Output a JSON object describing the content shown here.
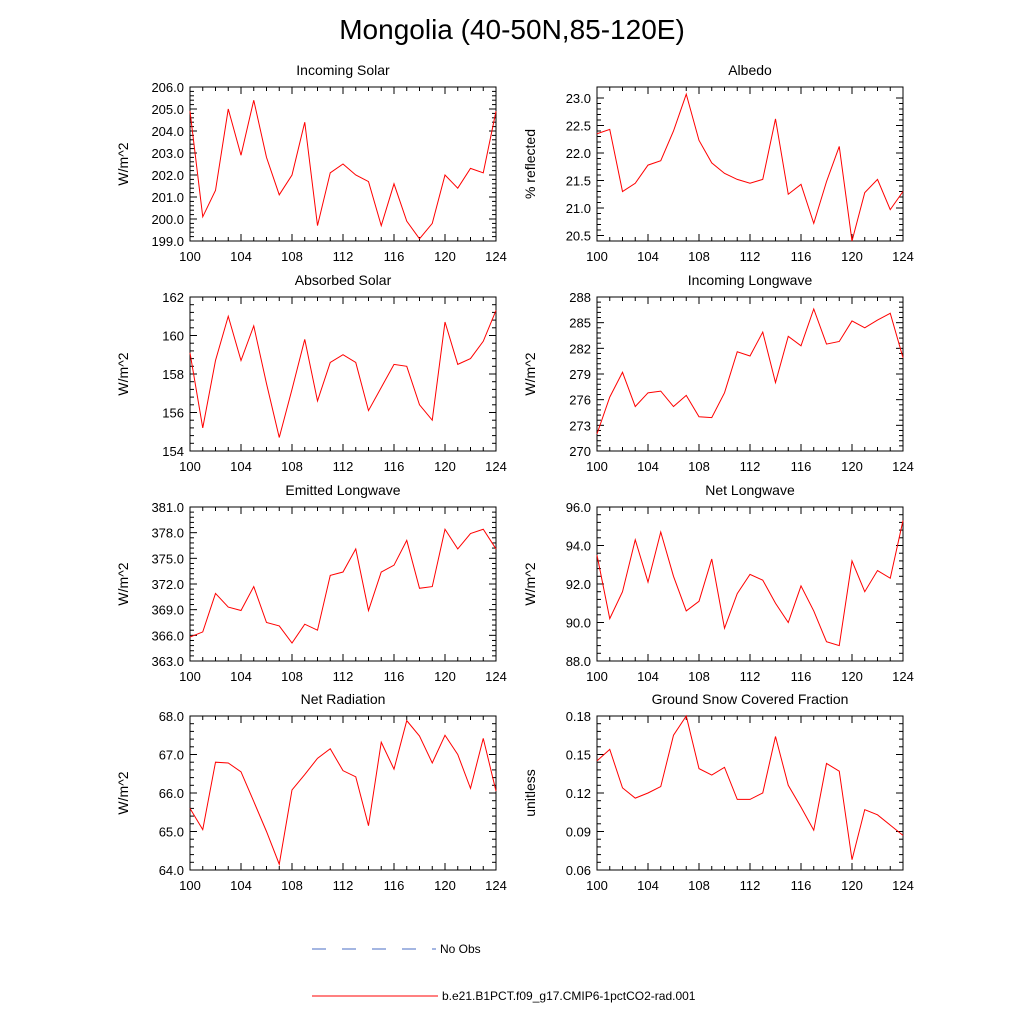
{
  "page_title": "Mongolia (40-50N,85-120E)",
  "legend": {
    "entries": [
      {
        "label": "No Obs",
        "color": "#4a6ec5",
        "style": "dashed"
      },
      {
        "label": "b.e21.B1PCT.f09_g17.CMIP6-1pctCO2-rad.001",
        "color": "#ff0000",
        "style": "solid"
      }
    ]
  },
  "colors": {
    "series": "#ff0000",
    "axis": "#000000",
    "background": "#ffffff"
  },
  "chart_data": [
    {
      "type": "line",
      "title": "Incoming Solar",
      "xlabel": "",
      "ylabel": "W/m^2",
      "xlim": [
        100,
        124
      ],
      "ylim": [
        199.0,
        206.0
      ],
      "xticks": [
        100,
        104,
        108,
        112,
        116,
        120,
        124
      ],
      "yticks": [
        "199.0",
        "200.0",
        "201.0",
        "202.0",
        "203.0",
        "204.0",
        "205.0",
        "206.0"
      ],
      "x": [
        100,
        101,
        102,
        103,
        104,
        105,
        106,
        107,
        108,
        109,
        110,
        111,
        112,
        113,
        114,
        115,
        116,
        117,
        118,
        119,
        120,
        121,
        122,
        123,
        124
      ],
      "series": [
        {
          "values": [
            204.9,
            200.1,
            201.3,
            205.0,
            202.9,
            205.4,
            202.8,
            201.1,
            202.0,
            204.4,
            199.7,
            202.1,
            202.5,
            202.0,
            201.7,
            199.7,
            201.6,
            199.9,
            199.1,
            199.8,
            202.0,
            201.4,
            202.3,
            202.1,
            204.9
          ]
        }
      ]
    },
    {
      "type": "line",
      "title": "Albedo",
      "xlabel": "",
      "ylabel": "% reflected",
      "xlim": [
        100,
        124
      ],
      "ylim": [
        20.4,
        23.2
      ],
      "xticks": [
        100,
        104,
        108,
        112,
        116,
        120,
        124
      ],
      "yticks": [
        "20.5",
        "21.0",
        "21.5",
        "22.0",
        "22.5",
        "23.0"
      ],
      "x": [
        100,
        101,
        102,
        103,
        104,
        105,
        106,
        107,
        108,
        109,
        110,
        111,
        112,
        113,
        114,
        115,
        116,
        117,
        118,
        119,
        120,
        121,
        122,
        123,
        124
      ],
      "series": [
        {
          "values": [
            22.35,
            22.43,
            21.3,
            21.45,
            21.78,
            21.86,
            22.4,
            23.07,
            22.23,
            21.82,
            21.63,
            21.52,
            21.45,
            21.52,
            22.62,
            21.25,
            21.43,
            20.72,
            21.48,
            22.12,
            20.4,
            21.28,
            21.52,
            20.97,
            21.3
          ]
        }
      ]
    },
    {
      "type": "line",
      "title": "Absorbed Solar",
      "xlabel": "",
      "ylabel": "W/m^2",
      "xlim": [
        100,
        124
      ],
      "ylim": [
        154,
        162
      ],
      "xticks": [
        100,
        104,
        108,
        112,
        116,
        120,
        124
      ],
      "yticks": [
        "154",
        "156",
        "158",
        "160",
        "162"
      ],
      "x": [
        100,
        101,
        102,
        103,
        104,
        105,
        106,
        107,
        108,
        109,
        110,
        111,
        112,
        113,
        114,
        115,
        116,
        117,
        118,
        119,
        120,
        121,
        122,
        123,
        124
      ],
      "series": [
        {
          "values": [
            159.1,
            155.2,
            158.7,
            161.0,
            158.7,
            160.5,
            157.5,
            154.7,
            157.2,
            159.8,
            156.6,
            158.6,
            159.0,
            158.6,
            156.1,
            157.3,
            158.5,
            158.4,
            156.4,
            155.6,
            160.7,
            158.5,
            158.8,
            159.7,
            161.3
          ]
        }
      ]
    },
    {
      "type": "line",
      "title": "Incoming Longwave",
      "xlabel": "",
      "ylabel": "W/m^2",
      "xlim": [
        100,
        124
      ],
      "ylim": [
        270,
        288
      ],
      "xticks": [
        100,
        104,
        108,
        112,
        116,
        120,
        124
      ],
      "yticks": [
        "270",
        "273",
        "276",
        "279",
        "282",
        "285",
        "288"
      ],
      "x": [
        100,
        101,
        102,
        103,
        104,
        105,
        106,
        107,
        108,
        109,
        110,
        111,
        112,
        113,
        114,
        115,
        116,
        117,
        118,
        119,
        120,
        121,
        122,
        123,
        124
      ],
      "series": [
        {
          "values": [
            272.0,
            276.3,
            279.2,
            275.2,
            276.8,
            277.0,
            275.2,
            276.5,
            274.0,
            273.9,
            276.8,
            281.6,
            281.1,
            283.9,
            278.0,
            283.4,
            282.3,
            286.6,
            282.5,
            282.8,
            285.2,
            284.4,
            285.3,
            286.1,
            280.9
          ]
        }
      ]
    },
    {
      "type": "line",
      "title": "Emitted Longwave",
      "xlabel": "",
      "ylabel": "W/m^2",
      "xlim": [
        100,
        124
      ],
      "ylim": [
        363.0,
        381.0
      ],
      "xticks": [
        100,
        104,
        108,
        112,
        116,
        120,
        124
      ],
      "yticks": [
        "363.0",
        "366.0",
        "369.0",
        "372.0",
        "375.0",
        "378.0",
        "381.0"
      ],
      "x": [
        100,
        101,
        102,
        103,
        104,
        105,
        106,
        107,
        108,
        109,
        110,
        111,
        112,
        113,
        114,
        115,
        116,
        117,
        118,
        119,
        120,
        121,
        122,
        123,
        124
      ],
      "series": [
        {
          "values": [
            365.8,
            366.4,
            370.9,
            369.3,
            368.9,
            371.7,
            367.5,
            367.1,
            365.1,
            367.3,
            366.6,
            373.0,
            373.4,
            376.1,
            368.9,
            373.4,
            374.2,
            377.1,
            371.5,
            371.7,
            378.4,
            376.1,
            377.9,
            378.4,
            376.1
          ]
        }
      ]
    },
    {
      "type": "line",
      "title": "Net Longwave",
      "xlabel": "",
      "ylabel": "W/m^2",
      "xlim": [
        100,
        124
      ],
      "ylim": [
        88.0,
        96.0
      ],
      "xticks": [
        100,
        104,
        108,
        112,
        116,
        120,
        124
      ],
      "yticks": [
        "88.0",
        "90.0",
        "92.0",
        "94.0",
        "96.0"
      ],
      "x": [
        100,
        101,
        102,
        103,
        104,
        105,
        106,
        107,
        108,
        109,
        110,
        111,
        112,
        113,
        114,
        115,
        116,
        117,
        118,
        119,
        120,
        121,
        122,
        123,
        124
      ],
      "series": [
        {
          "values": [
            93.5,
            90.2,
            91.6,
            94.3,
            92.1,
            94.7,
            92.4,
            90.6,
            91.1,
            93.3,
            89.7,
            91.5,
            92.5,
            92.2,
            91.0,
            90.0,
            91.9,
            90.6,
            89.0,
            88.8,
            93.2,
            91.6,
            92.7,
            92.3,
            95.3
          ]
        }
      ]
    },
    {
      "type": "line",
      "title": "Net Radiation",
      "xlabel": "",
      "ylabel": "W/m^2",
      "xlim": [
        100,
        124
      ],
      "ylim": [
        64.0,
        68.0
      ],
      "xticks": [
        100,
        104,
        108,
        112,
        116,
        120,
        124
      ],
      "yticks": [
        "64.0",
        "65.0",
        "66.0",
        "67.0",
        "68.0"
      ],
      "x": [
        100,
        101,
        102,
        103,
        104,
        105,
        106,
        107,
        108,
        109,
        110,
        111,
        112,
        113,
        114,
        115,
        116,
        117,
        118,
        119,
        120,
        121,
        122,
        123,
        124
      ],
      "series": [
        {
          "values": [
            65.6,
            65.05,
            66.8,
            66.78,
            66.55,
            65.78,
            65.0,
            64.15,
            66.08,
            66.48,
            66.9,
            67.15,
            66.58,
            66.42,
            65.15,
            67.32,
            66.62,
            67.88,
            67.48,
            66.78,
            67.5,
            67.0,
            66.12,
            67.42,
            66.05
          ]
        }
      ]
    },
    {
      "type": "line",
      "title": "Ground Snow Covered Fraction",
      "xlabel": "",
      "ylabel": "unitless",
      "xlim": [
        100,
        124
      ],
      "ylim": [
        0.06,
        0.18
      ],
      "xticks": [
        100,
        104,
        108,
        112,
        116,
        120,
        124
      ],
      "yticks": [
        "0.06",
        "0.09",
        "0.12",
        "0.15",
        "0.18"
      ],
      "x": [
        100,
        101,
        102,
        103,
        104,
        105,
        106,
        107,
        108,
        109,
        110,
        111,
        112,
        113,
        114,
        115,
        116,
        117,
        118,
        119,
        120,
        121,
        122,
        123,
        124
      ],
      "series": [
        {
          "values": [
            0.145,
            0.154,
            0.124,
            0.116,
            0.12,
            0.125,
            0.165,
            0.18,
            0.139,
            0.134,
            0.14,
            0.115,
            0.115,
            0.12,
            0.164,
            0.126,
            0.109,
            0.091,
            0.143,
            0.137,
            0.068,
            0.107,
            0.103,
            0.095,
            0.087
          ]
        }
      ]
    }
  ]
}
